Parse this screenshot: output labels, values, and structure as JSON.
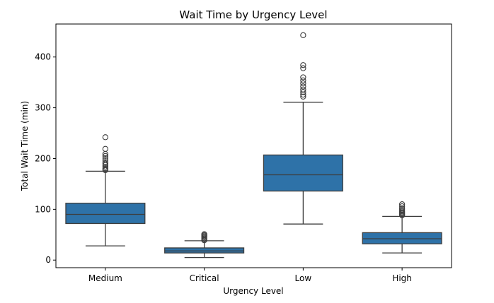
{
  "chart_data": {
    "type": "box",
    "title": "Wait Time by Urgency Level",
    "xlabel": "Urgency Level",
    "ylabel": "Total Wait Time (min)",
    "ylim": [
      -15,
      465
    ],
    "yticks": [
      0,
      100,
      200,
      300,
      400
    ],
    "grid": false,
    "box_color": "#2e72a8",
    "line_color": "#3d3d3d",
    "categories": [
      "Medium",
      "Critical",
      "Low",
      "High"
    ],
    "boxes": [
      {
        "category": "Medium",
        "whisker_low": 28,
        "q1": 72,
        "median": 90,
        "q3": 112,
        "whisker_high": 175,
        "outliers": [
          177,
          179,
          181,
          184,
          187,
          190,
          193,
          197,
          201,
          205,
          209,
          219,
          242
        ]
      },
      {
        "category": "Critical",
        "whisker_low": 5,
        "q1": 14,
        "median": 18,
        "q3": 24,
        "whisker_high": 38,
        "outliers": [
          39,
          41,
          43,
          45,
          47,
          49,
          51
        ]
      },
      {
        "category": "Low",
        "whisker_low": 71,
        "q1": 136,
        "median": 168,
        "q3": 207,
        "whisker_high": 311,
        "outliers": [
          322,
          326,
          331,
          336,
          342,
          348,
          354,
          360,
          378,
          384,
          443
        ]
      },
      {
        "category": "High",
        "whisker_low": 14,
        "q1": 32,
        "median": 42,
        "q3": 54,
        "whisker_high": 86,
        "outliers": [
          88,
          90,
          92,
          94,
          96,
          99,
          102,
          106,
          110
        ]
      }
    ]
  }
}
